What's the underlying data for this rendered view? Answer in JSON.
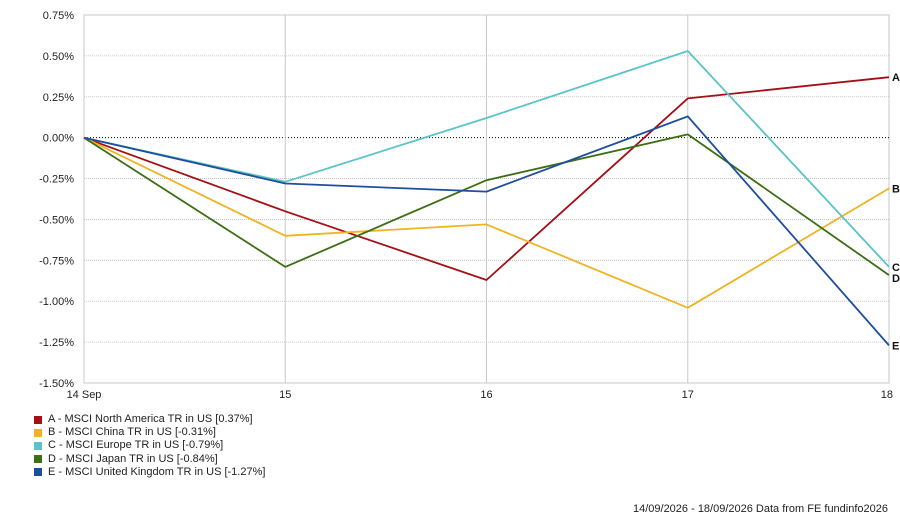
{
  "chart_data": {
    "type": "line",
    "title": "",
    "xlabel": "",
    "ylabel": "",
    "categories": [
      "14 Sep",
      "15",
      "16",
      "17",
      "18"
    ],
    "ylim": [
      -1.5,
      0.75
    ],
    "yticks": [
      0.75,
      0.5,
      0.25,
      0.0,
      -0.25,
      -0.5,
      -0.75,
      -1.0,
      -1.25,
      -1.5
    ],
    "ytick_labels": [
      "0.75%",
      "0.50%",
      "0.25%",
      "0.00%",
      "-0.25%",
      "-0.50%",
      "-0.75%",
      "-1.00%",
      "-1.25%",
      "-1.50%"
    ],
    "grid": true,
    "legend_position": "bottom-left",
    "series": [
      {
        "key": "A",
        "name": "A - MSCI North America TR in US [0.37%]",
        "color": "#a50f15",
        "values": [
          0.0,
          -0.45,
          -0.87,
          0.24,
          0.37
        ]
      },
      {
        "key": "B",
        "name": "B - MSCI China TR in US [-0.31%]",
        "color": "#f0b323",
        "values": [
          0.0,
          -0.6,
          -0.53,
          -1.04,
          -0.31
        ]
      },
      {
        "key": "C",
        "name": "C - MSCI Europe TR in US [-0.79%]",
        "color": "#5bc4c8",
        "values": [
          0.0,
          -0.27,
          0.12,
          0.53,
          -0.79
        ]
      },
      {
        "key": "D",
        "name": "D - MSCI Japan TR in US [-0.84%]",
        "color": "#3c6e14",
        "values": [
          0.0,
          -0.79,
          -0.26,
          0.02,
          -0.84
        ]
      },
      {
        "key": "E",
        "name": "E - MSCI United Kingdom TR in US [-1.27%]",
        "color": "#1f4e9c",
        "values": [
          0.0,
          -0.28,
          -0.33,
          0.13,
          -1.27
        ]
      }
    ]
  },
  "footer": "14/09/2026 - 18/09/2026 Data from FE fundinfo2026"
}
